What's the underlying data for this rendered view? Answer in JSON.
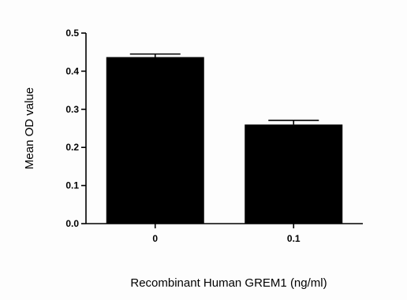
{
  "chart_data": {
    "type": "bar",
    "title": "",
    "xlabel": "Recombinant Human GREM1 (ng/ml)",
    "ylabel": "Mean OD value",
    "categories": [
      "0",
      "0.1"
    ],
    "values": [
      0.437,
      0.26
    ],
    "errors": [
      0.008,
      0.011
    ],
    "ylim": [
      0,
      0.5
    ],
    "yticks": [
      "0.0",
      "0.1",
      "0.2",
      "0.3",
      "0.4",
      "0.5"
    ],
    "grid": false,
    "legend": "none",
    "bar_color": "#000000",
    "axis_color": "#000000"
  }
}
